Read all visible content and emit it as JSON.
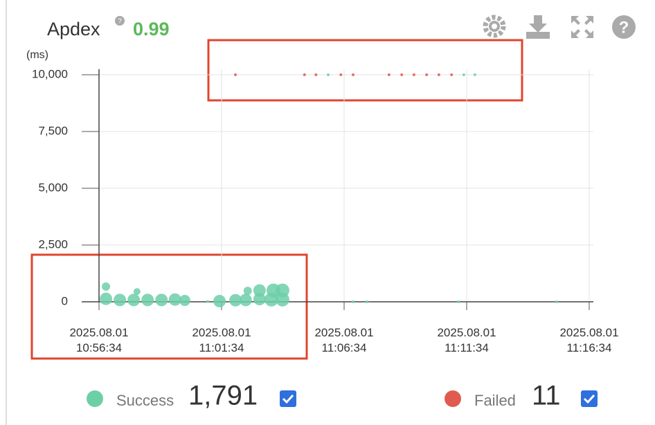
{
  "chart_data": {
    "type": "scatter",
    "title": "Apdex",
    "apdex": 0.99,
    "y_unit": "(ms)",
    "xlim": [
      "2025-08-01T10:56:34",
      "2025-08-01T11:16:34"
    ],
    "xticks": [
      {
        "value": "2025-08-01T10:56:34",
        "label": "2025.08.01\n10:56:34"
      },
      {
        "value": "2025-08-01T11:01:34",
        "label": "2025.08.01\n11:01:34"
      },
      {
        "value": "2025-08-01T11:06:34",
        "label": "2025.08.01\n11:06:34"
      },
      {
        "value": "2025-08-01T11:11:34",
        "label": "2025.08.01\n11:11:34"
      },
      {
        "value": "2025-08-01T11:16:34",
        "label": "2025.08.01\n11:16:34"
      }
    ],
    "ylim": [
      0,
      10000
    ],
    "yticks": [
      0,
      {
        "value": 2500,
        "label": "2,500"
      },
      {
        "value": 5000,
        "label": "5,000"
      },
      {
        "value": 7500,
        "label": "7,500"
      },
      {
        "value": 10000,
        "label": "10,000"
      }
    ],
    "grid": true,
    "series": [
      {
        "name": "Success",
        "total": "1,791",
        "color": "#6dcfa8",
        "x": [
          "2025-08-01T10:56:51",
          "2025-08-01T10:56:51",
          "2025-08-01T10:57:25",
          "2025-08-01T10:57:59",
          "2025-08-01T10:58:07",
          "2025-08-01T10:58:33",
          "2025-08-01T10:59:07",
          "2025-08-01T10:59:40",
          "2025-08-01T11:00:04",
          "2025-08-01T11:01:00",
          "2025-08-01T11:01:29",
          "2025-08-01T11:02:08",
          "2025-08-01T11:02:33",
          "2025-08-01T11:02:38",
          "2025-08-01T11:03:07",
          "2025-08-01T11:03:07",
          "2025-08-01T11:03:36",
          "2025-08-01T11:03:41",
          "2025-08-01T11:04:03",
          "2025-08-01T11:04:03",
          "2025-08-01T11:06:56",
          "2025-08-01T11:07:30",
          "2025-08-01T11:11:14",
          "2025-08-01T11:15:14",
          "2025-08-01T11:05:55",
          "2025-08-01T11:11:27",
          "2025-08-01T11:11:54"
        ],
        "values": [
          130,
          670,
          80,
          80,
          450,
          80,
          80,
          100,
          60,
          10,
          30,
          70,
          80,
          480,
          120,
          500,
          100,
          500,
          100,
          500,
          0,
          0,
          0,
          0,
          10000,
          10000,
          10000
        ],
        "sizes": [
          9,
          6,
          9,
          9,
          5,
          9,
          9,
          9,
          8,
          2,
          9,
          9,
          9,
          6,
          9,
          9,
          10,
          10,
          10,
          10,
          2,
          2,
          2,
          2,
          2,
          2,
          2
        ]
      },
      {
        "name": "Failed",
        "total": "11",
        "color": "#e05b4f",
        "x": [
          "2025-08-01T11:02:08",
          "2025-08-01T11:04:57",
          "2025-08-01T11:05:25",
          "2025-08-01T11:06:26",
          "2025-08-01T11:06:56",
          "2025-08-01T11:08:24",
          "2025-08-01T11:08:55",
          "2025-08-01T11:09:25",
          "2025-08-01T11:09:56",
          "2025-08-01T11:10:26",
          "2025-08-01T11:10:57"
        ],
        "values": [
          10000,
          10000,
          10000,
          10000,
          10000,
          10000,
          10000,
          10000,
          10000,
          10000,
          10000
        ],
        "sizes": [
          2,
          2,
          2,
          2,
          2,
          2,
          2,
          2,
          2,
          2,
          2
        ]
      }
    ]
  }
}
